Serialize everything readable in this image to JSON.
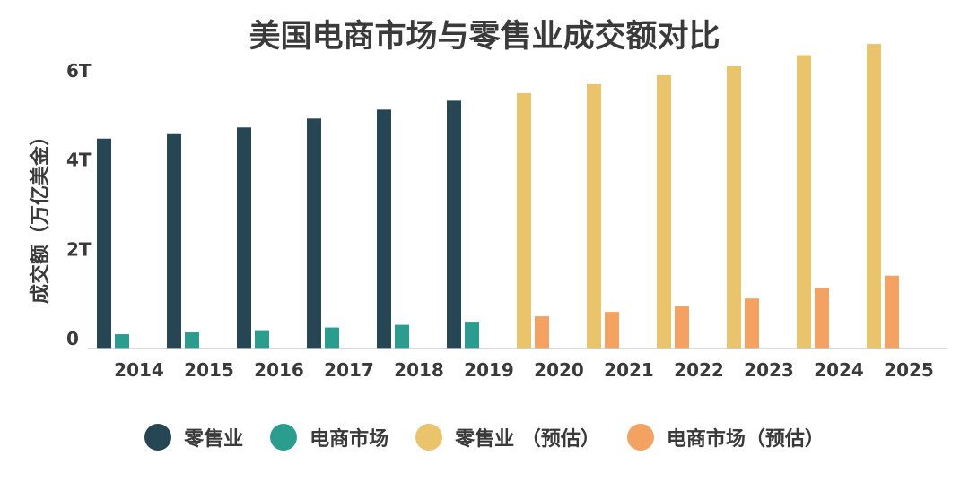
{
  "chart_data": {
    "type": "bar",
    "title": "美国电商市场与零售业成交额对比",
    "ylabel": "成交额（万亿美金）",
    "xlabel": "",
    "ylim": [
      0,
      6.4
    ],
    "yticks": [
      {
        "value": 0,
        "label": "0"
      },
      {
        "value": 2,
        "label": "2T"
      },
      {
        "value": 4,
        "label": "4T"
      },
      {
        "value": 6,
        "label": "6T"
      }
    ],
    "categories": [
      "2014",
      "2015",
      "2016",
      "2017",
      "2018",
      "2019",
      "2020",
      "2021",
      "2022",
      "2023",
      "2024",
      "2025"
    ],
    "series": [
      {
        "name": "零售业",
        "color": "#264653",
        "values": [
          4.7,
          4.8,
          4.95,
          5.15,
          5.35,
          5.55,
          null,
          null,
          null,
          null,
          null,
          null
        ]
      },
      {
        "name": "电商市场",
        "color": "#2a9d8f",
        "values": [
          0.32,
          0.36,
          0.41,
          0.47,
          0.53,
          0.6,
          null,
          null,
          null,
          null,
          null,
          null
        ]
      },
      {
        "name": "零售业 （预估）",
        "color": "#e9c46a",
        "values": [
          null,
          null,
          null,
          null,
          null,
          null,
          5.72,
          5.92,
          6.12,
          6.32,
          6.57,
          6.82
        ]
      },
      {
        "name": "电商市场（预估）",
        "color": "#f4a261",
        "values": [
          null,
          null,
          null,
          null,
          null,
          null,
          0.72,
          0.82,
          0.95,
          1.12,
          1.35,
          1.63
        ]
      }
    ],
    "legend_position": "bottom",
    "grid": false
  }
}
